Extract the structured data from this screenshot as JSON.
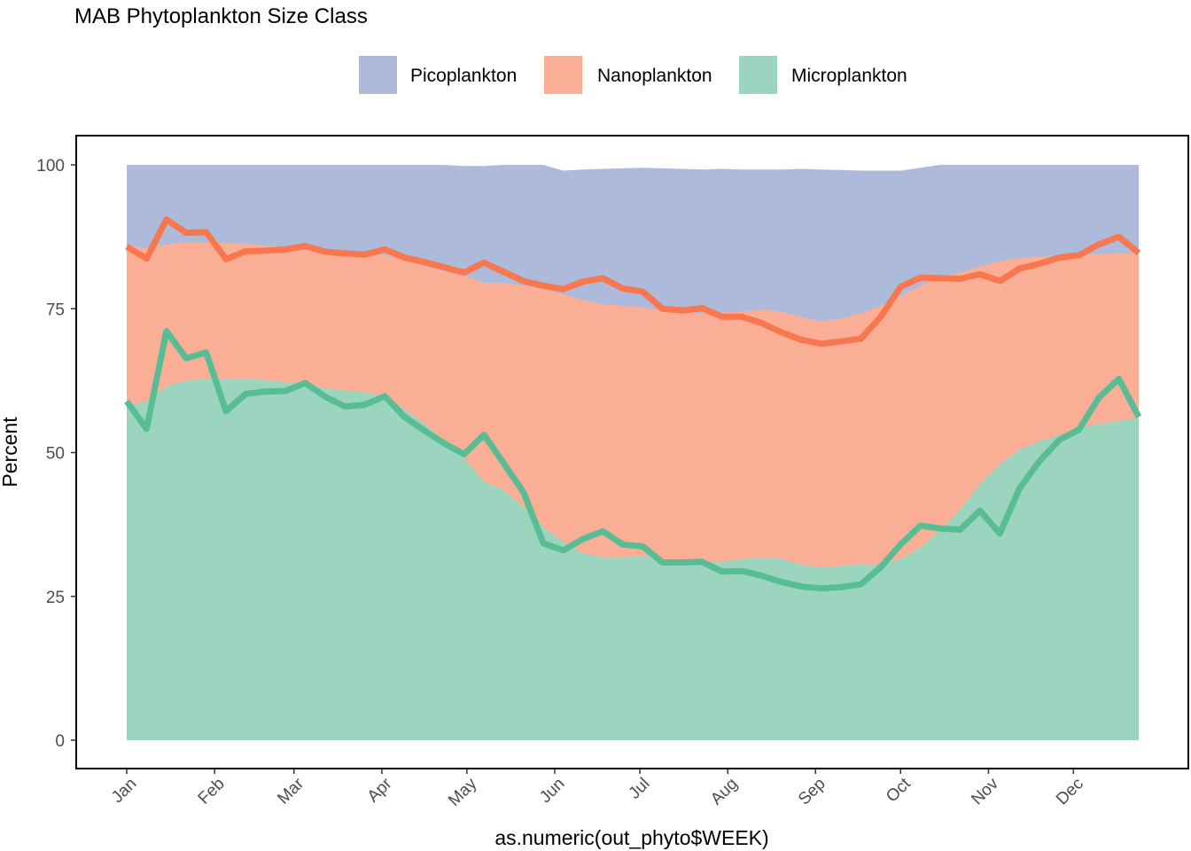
{
  "chart_data": {
    "type": "area",
    "title": "MAB Phytoplankton Size Class",
    "xlabel": "as.numeric(out_phyto$WEEK)",
    "ylabel": "Percent",
    "ylim": [
      0,
      100
    ],
    "xlim": [
      1,
      52
    ],
    "y_ticks": [
      0,
      25,
      50,
      75,
      100
    ],
    "x_ticks": [
      {
        "label": "Jan",
        "week": 1.0
      },
      {
        "label": "Feb",
        "week": 5.43
      },
      {
        "label": "Mar",
        "week": 9.43
      },
      {
        "label": "Apr",
        "week": 13.86
      },
      {
        "label": "May",
        "week": 18.14
      },
      {
        "label": "Jun",
        "week": 22.57
      },
      {
        "label": "Jul",
        "week": 26.86
      },
      {
        "label": "Aug",
        "week": 31.29
      },
      {
        "label": "Sep",
        "week": 35.71
      },
      {
        "label": "Oct",
        "week": 40.0
      },
      {
        "label": "Nov",
        "week": 44.43
      },
      {
        "label": "Dec",
        "week": 48.71
      }
    ],
    "grid": false,
    "legend": {
      "position": "top",
      "entries": [
        {
          "name": "Picoplankton",
          "color": "#aebad9"
        },
        {
          "name": "Nanoplankton",
          "color": "#f9ae95"
        },
        {
          "name": "Microplankton",
          "color": "#9bd4bf"
        }
      ]
    },
    "x": [
      1,
      2,
      3,
      4,
      5,
      6,
      7,
      8,
      9,
      10,
      11,
      12,
      13,
      14,
      15,
      16,
      17,
      18,
      19,
      20,
      21,
      22,
      23,
      24,
      25,
      26,
      27,
      28,
      29,
      30,
      31,
      32,
      33,
      34,
      35,
      36,
      37,
      38,
      39,
      40,
      41,
      42,
      43,
      44,
      45,
      46,
      47,
      48,
      49,
      50,
      51,
      52
    ],
    "areas": [
      {
        "name": "Picoplankton",
        "color": "#aebad9",
        "upper": [
          100,
          100,
          100,
          100,
          100,
          100,
          100,
          100,
          100,
          100,
          100,
          100,
          100,
          100,
          100,
          100,
          100,
          99.8,
          99.8,
          100,
          100,
          100,
          99,
          99.2,
          99.3,
          99.4,
          99.5,
          99.4,
          99.3,
          99.2,
          99.3,
          99.2,
          99.2,
          99.2,
          99.3,
          99.2,
          99.1,
          99.0,
          99.0,
          99.0,
          99.5,
          100,
          100,
          100,
          100,
          100,
          100,
          100,
          100,
          100,
          100,
          100
        ]
      },
      {
        "name": "Nanoplankton",
        "color": "#f9ae95",
        "upper": [
          86,
          85.5,
          86.2,
          86.5,
          86.5,
          86.4,
          86.3,
          86,
          85.8,
          85.6,
          85.2,
          85,
          84.7,
          84.3,
          83.5,
          82.5,
          81.5,
          80.8,
          79.5,
          79.5,
          79,
          78.5,
          77.5,
          76.5,
          75.8,
          75.5,
          75.2,
          74.8,
          74.5,
          74.2,
          74.3,
          74.5,
          74.8,
          74.5,
          73.5,
          72.8,
          73.3,
          74.2,
          75.5,
          77.2,
          79,
          80.5,
          81.3,
          82.3,
          83.3,
          83.8,
          84,
          84.2,
          84.4,
          84.5,
          84.6,
          84.6
        ]
      },
      {
        "name": "Microplankton",
        "color": "#9bd4bf",
        "upper": [
          58,
          59,
          61.5,
          62.5,
          62.8,
          62.8,
          62.8,
          62.6,
          62.2,
          61.8,
          61.2,
          60.8,
          60.5,
          59.8,
          57.5,
          55,
          52,
          49,
          45,
          43.5,
          40.5,
          37,
          34.5,
          32.5,
          31.8,
          31.8,
          32,
          31.5,
          31,
          30.8,
          31,
          31.5,
          31.8,
          31.5,
          30.5,
          30,
          30.3,
          30.6,
          30.5,
          31.5,
          33.5,
          36.5,
          40,
          44.5,
          48,
          50.5,
          52,
          53,
          54.2,
          55,
          55.5,
          56
        ]
      }
    ],
    "series": [
      {
        "name": "Nanoplankton",
        "color": "#f8774e",
        "values": [
          85.8,
          83.7,
          90.5,
          88.2,
          88.3,
          83.6,
          85.0,
          85.1,
          85.3,
          85.9,
          84.9,
          84.6,
          84.4,
          85.3,
          83.9,
          83.1,
          82.2,
          81.3,
          83.0,
          81.4,
          79.8,
          79.0,
          78.4,
          79.7,
          80.3,
          78.5,
          78.0,
          75.0,
          74.7,
          75.1,
          73.6,
          73.6,
          72.5,
          70.9,
          69.6,
          68.9,
          69.3,
          69.8,
          73.6,
          78.8,
          80.4,
          80.3,
          80.2,
          81.0,
          79.8,
          82.0,
          82.8,
          83.9,
          84.3,
          86.2,
          87.5,
          84.7
        ]
      },
      {
        "name": "Microplankton",
        "color": "#58bd94",
        "values": [
          58.9,
          54.1,
          71.1,
          66.4,
          67.4,
          57.2,
          60.2,
          60.6,
          60.7,
          62.1,
          59.7,
          58.0,
          58.3,
          59.8,
          56.2,
          53.8,
          51.6,
          49.7,
          53.1,
          48.1,
          43.1,
          34.2,
          33.0,
          35.0,
          36.3,
          34.0,
          33.7,
          30.9,
          30.9,
          31.0,
          29.3,
          29.4,
          28.6,
          27.5,
          26.7,
          26.4,
          26.6,
          27.1,
          30.1,
          34.0,
          37.3,
          36.8,
          36.6,
          39.9,
          35.9,
          43.8,
          48.5,
          52.2,
          54.0,
          59.6,
          62.8,
          56.2
        ]
      }
    ]
  }
}
